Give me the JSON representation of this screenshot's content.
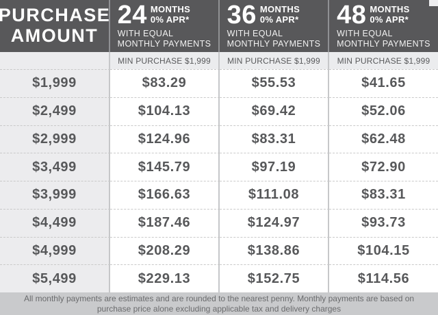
{
  "ui": {
    "purchase_header_line1": "PURCHASE",
    "purchase_header_line2": "AMOUNT",
    "plans": [
      {
        "months": "24",
        "months_word": "MONTHS",
        "apr": "0% APR*",
        "equal_line1": "WITH EQUAL",
        "equal_line2": "MONTHLY PAYMENTS",
        "min_purchase": "MIN PURCHASE $1,999"
      },
      {
        "months": "36",
        "months_word": "MONTHS",
        "apr": "0% APR*",
        "equal_line1": "WITH EQUAL",
        "equal_line2": "MONTHLY PAYMENTS",
        "min_purchase": "MIN PURCHASE $1,999"
      },
      {
        "months": "48",
        "months_word": "MONTHS",
        "apr": "0% APR*",
        "equal_line1": "WITH EQUAL",
        "equal_line2": "MONTHLY PAYMENTS",
        "min_purchase": "MIN PURCHASE $1,999"
      }
    ],
    "colors": {
      "header_bg": "#58585a",
      "alt_column_bg": "#ececee",
      "min_row_bg": "#ebecee",
      "footer_bg": "#c9cacc",
      "text": "#57585a"
    }
  },
  "chart_data": {
    "type": "table",
    "title": "0% APR equal monthly payment financing table",
    "columns": [
      "PURCHASE AMOUNT",
      "24 MONTHS 0% APR* WITH EQUAL MONTHLY PAYMENTS",
      "36 MONTHS 0% APR* WITH EQUAL MONTHLY PAYMENTS",
      "48 MONTHS 0% APR* WITH EQUAL MONTHLY PAYMENTS"
    ],
    "min_purchase_row": [
      "",
      "MIN PURCHASE $1,999",
      "MIN PURCHASE $1,999",
      "MIN PURCHASE $1,999"
    ],
    "rows": [
      [
        "$1,999",
        "$83.29",
        "$55.53",
        "$41.65"
      ],
      [
        "$2,499",
        "$104.13",
        "$69.42",
        "$52.06"
      ],
      [
        "$2,999",
        "$124.96",
        "$83.31",
        "$62.48"
      ],
      [
        "$3,499",
        "$145.79",
        "$97.19",
        "$72.90"
      ],
      [
        "$3,999",
        "$166.63",
        "$111.08",
        "$83.31"
      ],
      [
        "$4,499",
        "$187.46",
        "$124.97",
        "$93.73"
      ],
      [
        "$4,999",
        "$208.29",
        "$138.86",
        "$104.15"
      ],
      [
        "$5,499",
        "$229.13",
        "$152.75",
        "$114.56"
      ]
    ],
    "footnote": "All monthly payments are estimates and are rounded to the nearest penny.  Monthly payments are based on purchase price alone excluding applicable tax and delivery charges"
  }
}
